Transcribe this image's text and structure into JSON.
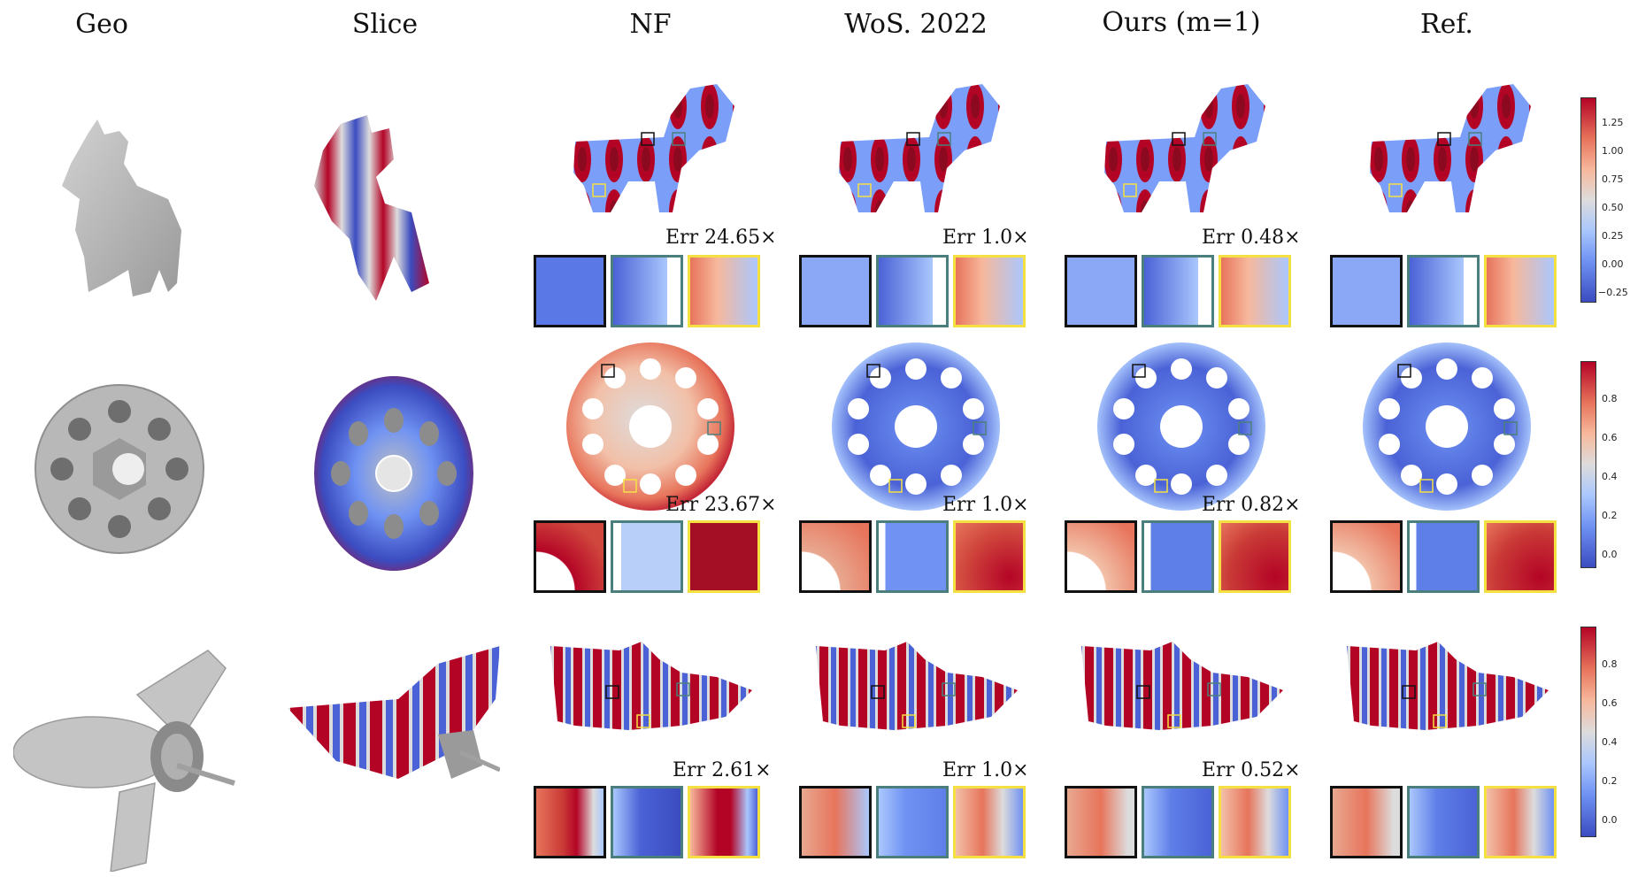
{
  "columns": [
    "Geo",
    "Slice",
    "NF",
    "WoS. 2022",
    "Ours (m=1)",
    "Ref."
  ],
  "rows": [
    {
      "name": "cow",
      "errors": [
        "Err 24.65×",
        "Err 1.0×",
        "Err 0.48×",
        ""
      ],
      "colorbar_ticks": [
        "1.25",
        "1.00",
        "0.75",
        "0.50",
        "0.25",
        "0.00",
        "−0.25"
      ]
    },
    {
      "name": "gear",
      "errors": [
        "Err 23.67×",
        "Err 1.0×",
        "Err 0.82×",
        ""
      ],
      "colorbar_ticks": [
        "0.8",
        "0.6",
        "0.4",
        "0.2",
        "0.0"
      ]
    },
    {
      "name": "rocket",
      "errors": [
        "Err 2.61×",
        "Err 1.0×",
        "Err 0.52×",
        ""
      ],
      "colorbar_ticks": [
        "0.8",
        "0.6",
        "0.4",
        "0.2",
        "0.0"
      ]
    }
  ],
  "colors": {
    "cold": "#3b4cc0",
    "neutral": "#dddcdc",
    "hot": "#b40426",
    "inset_black": "#111111",
    "inset_teal": "#4b7f7d",
    "inset_yellow": "#f5e043",
    "geometry_gray": "#b8b8b8"
  }
}
